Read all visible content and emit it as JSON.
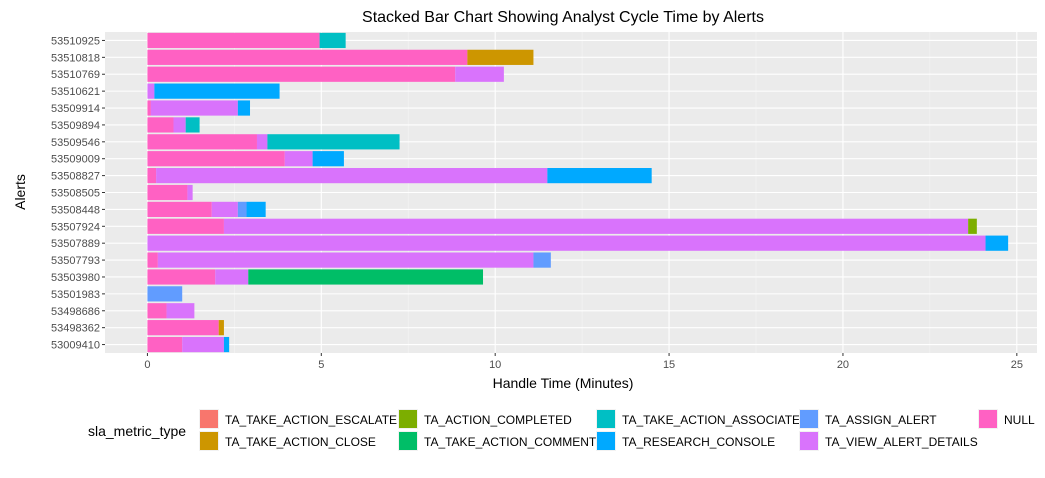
{
  "chart_data": {
    "type": "bar",
    "orientation": "horizontal",
    "stacked": true,
    "title": "Stacked Bar Chart Showing Analyst Cycle Time by Alerts",
    "xlabel": "Handle Time (Minutes)",
    "ylabel": "Alerts",
    "xlim": [
      0,
      25.5
    ],
    "xticks": [
      0,
      5,
      10,
      15,
      20,
      25
    ],
    "grid": true,
    "legend_title": "sla_metric_type",
    "legend_position": "bottom",
    "categories": [
      "53510925",
      "53510818",
      "53510769",
      "53510621",
      "53509914",
      "53509894",
      "53509546",
      "53509009",
      "53508827",
      "53508505",
      "53508448",
      "53507924",
      "53507889",
      "53507793",
      "53503980",
      "53501983",
      "53498686",
      "53498362",
      "53009410"
    ],
    "series": [
      {
        "name": "TA_TAKE_ACTION_ESCALATE",
        "color": "#F8766D",
        "values": [
          0,
          0,
          0,
          0,
          0,
          0,
          0,
          0,
          0,
          0,
          0,
          0,
          0,
          0,
          0,
          0,
          0,
          0,
          0
        ]
      },
      {
        "name": "TA_TAKE_ACTION_CLOSE",
        "color": "#CD9600",
        "values": [
          0,
          1.9,
          0,
          0,
          0,
          0,
          0,
          0,
          0,
          0,
          0,
          0,
          0,
          0,
          0,
          0,
          0,
          0.15,
          0
        ]
      },
      {
        "name": "TA_ACTION_COMPLETED",
        "color": "#7CAE00",
        "values": [
          0,
          0,
          0,
          0,
          0,
          0,
          0,
          0,
          0,
          0,
          0,
          0.25,
          0,
          0,
          0,
          0,
          0,
          0,
          0
        ]
      },
      {
        "name": "TA_TAKE_ACTION_COMMENT",
        "color": "#00BE67",
        "values": [
          0,
          0,
          0,
          0,
          0,
          0,
          0,
          0,
          0,
          0,
          0,
          0,
          0,
          0,
          6.75,
          0,
          0,
          0,
          0
        ]
      },
      {
        "name": "TA_TAKE_ACTION_ASSOCIATE",
        "color": "#00BFC4",
        "values": [
          0.75,
          0,
          0,
          0,
          0,
          0.4,
          3.8,
          0,
          0,
          0,
          0,
          0,
          0,
          0,
          0,
          0,
          0,
          0,
          0
        ]
      },
      {
        "name": "TA_RESEARCH_CONSOLE",
        "color": "#00A9FF",
        "values": [
          0,
          0,
          0,
          3.6,
          0.35,
          0,
          0,
          0.9,
          3.0,
          0,
          0.55,
          0,
          0.65,
          0,
          0,
          0,
          0,
          0,
          0.15
        ]
      },
      {
        "name": "TA_ASSIGN_ALERT",
        "color": "#619CFF",
        "values": [
          0,
          0,
          0,
          0,
          0,
          0,
          0,
          0,
          0,
          0,
          0.25,
          0,
          0,
          0.5,
          0,
          1.0,
          0,
          0,
          0
        ]
      },
      {
        "name": "TA_VIEW_ALERT_DETAILS",
        "color": "#D973FC",
        "values": [
          0,
          0,
          1.4,
          0.2,
          2.5,
          0.35,
          0.3,
          0.8,
          11.25,
          0.15,
          0.75,
          21.4,
          24.1,
          10.8,
          0.95,
          0,
          0.8,
          0,
          1.2
        ]
      },
      {
        "name": "NULL",
        "color": "#FF61C3",
        "values": [
          4.95,
          9.2,
          8.85,
          0,
          0.1,
          0.75,
          3.15,
          3.95,
          0.25,
          1.15,
          1.85,
          2.2,
          0,
          0.3,
          1.95,
          0,
          0.55,
          2.05,
          1.0
        ]
      }
    ]
  }
}
